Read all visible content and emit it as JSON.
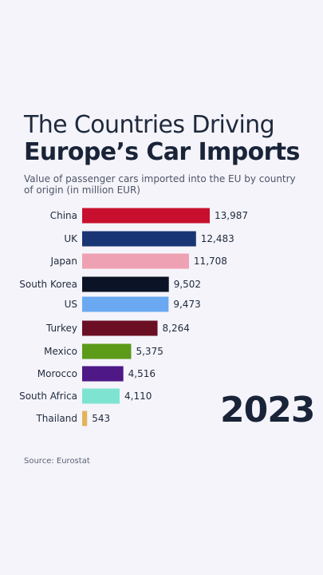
{
  "title_line1": "The Countries Driving",
  "title_line2": "Europe’s Car Imports",
  "subtitle": "Value of passenger cars imported into the EU by country of origin (in million EUR)",
  "year": "2023",
  "source": "Source: Eurostat",
  "chart_data": {
    "type": "bar",
    "orientation": "horizontal",
    "title": "The Countries Driving Europe’s Car Imports",
    "subtitle": "Value of passenger cars imported into the EU by country of origin (in million EUR)",
    "categories": [
      "China",
      "UK",
      "Japan",
      "South Korea",
      "US",
      "Turkey",
      "Mexico",
      "Morocco",
      "South Africa",
      "Thailand"
    ],
    "values": [
      13987,
      12483,
      11708,
      9502,
      9473,
      8264,
      5375,
      4516,
      4110,
      543
    ],
    "value_labels": [
      "13,987",
      "12,483",
      "11,708",
      "9,502",
      "9,473",
      "8,264",
      "5,375",
      "4,516",
      "4,110",
      "543"
    ],
    "colors": [
      "#c8102e",
      "#1a3575",
      "#eea1b2",
      "#0b1426",
      "#6aa9f2",
      "#6b0f24",
      "#5c9a1a",
      "#4e1886",
      "#7fe3d2",
      "#e2b458"
    ],
    "flag_icons": [
      "china-flag-icon",
      "uk-flag-icon",
      "japan-flag-icon",
      "south-korea-flag-icon",
      "us-flag-icon",
      "turkey-flag-icon",
      "mexico-flag-icon",
      "morocco-flag-icon",
      "south-africa-flag-icon",
      "thailand-flag-icon"
    ],
    "xlim": [
      0,
      14000
    ],
    "grid": false,
    "legend": "none"
  }
}
